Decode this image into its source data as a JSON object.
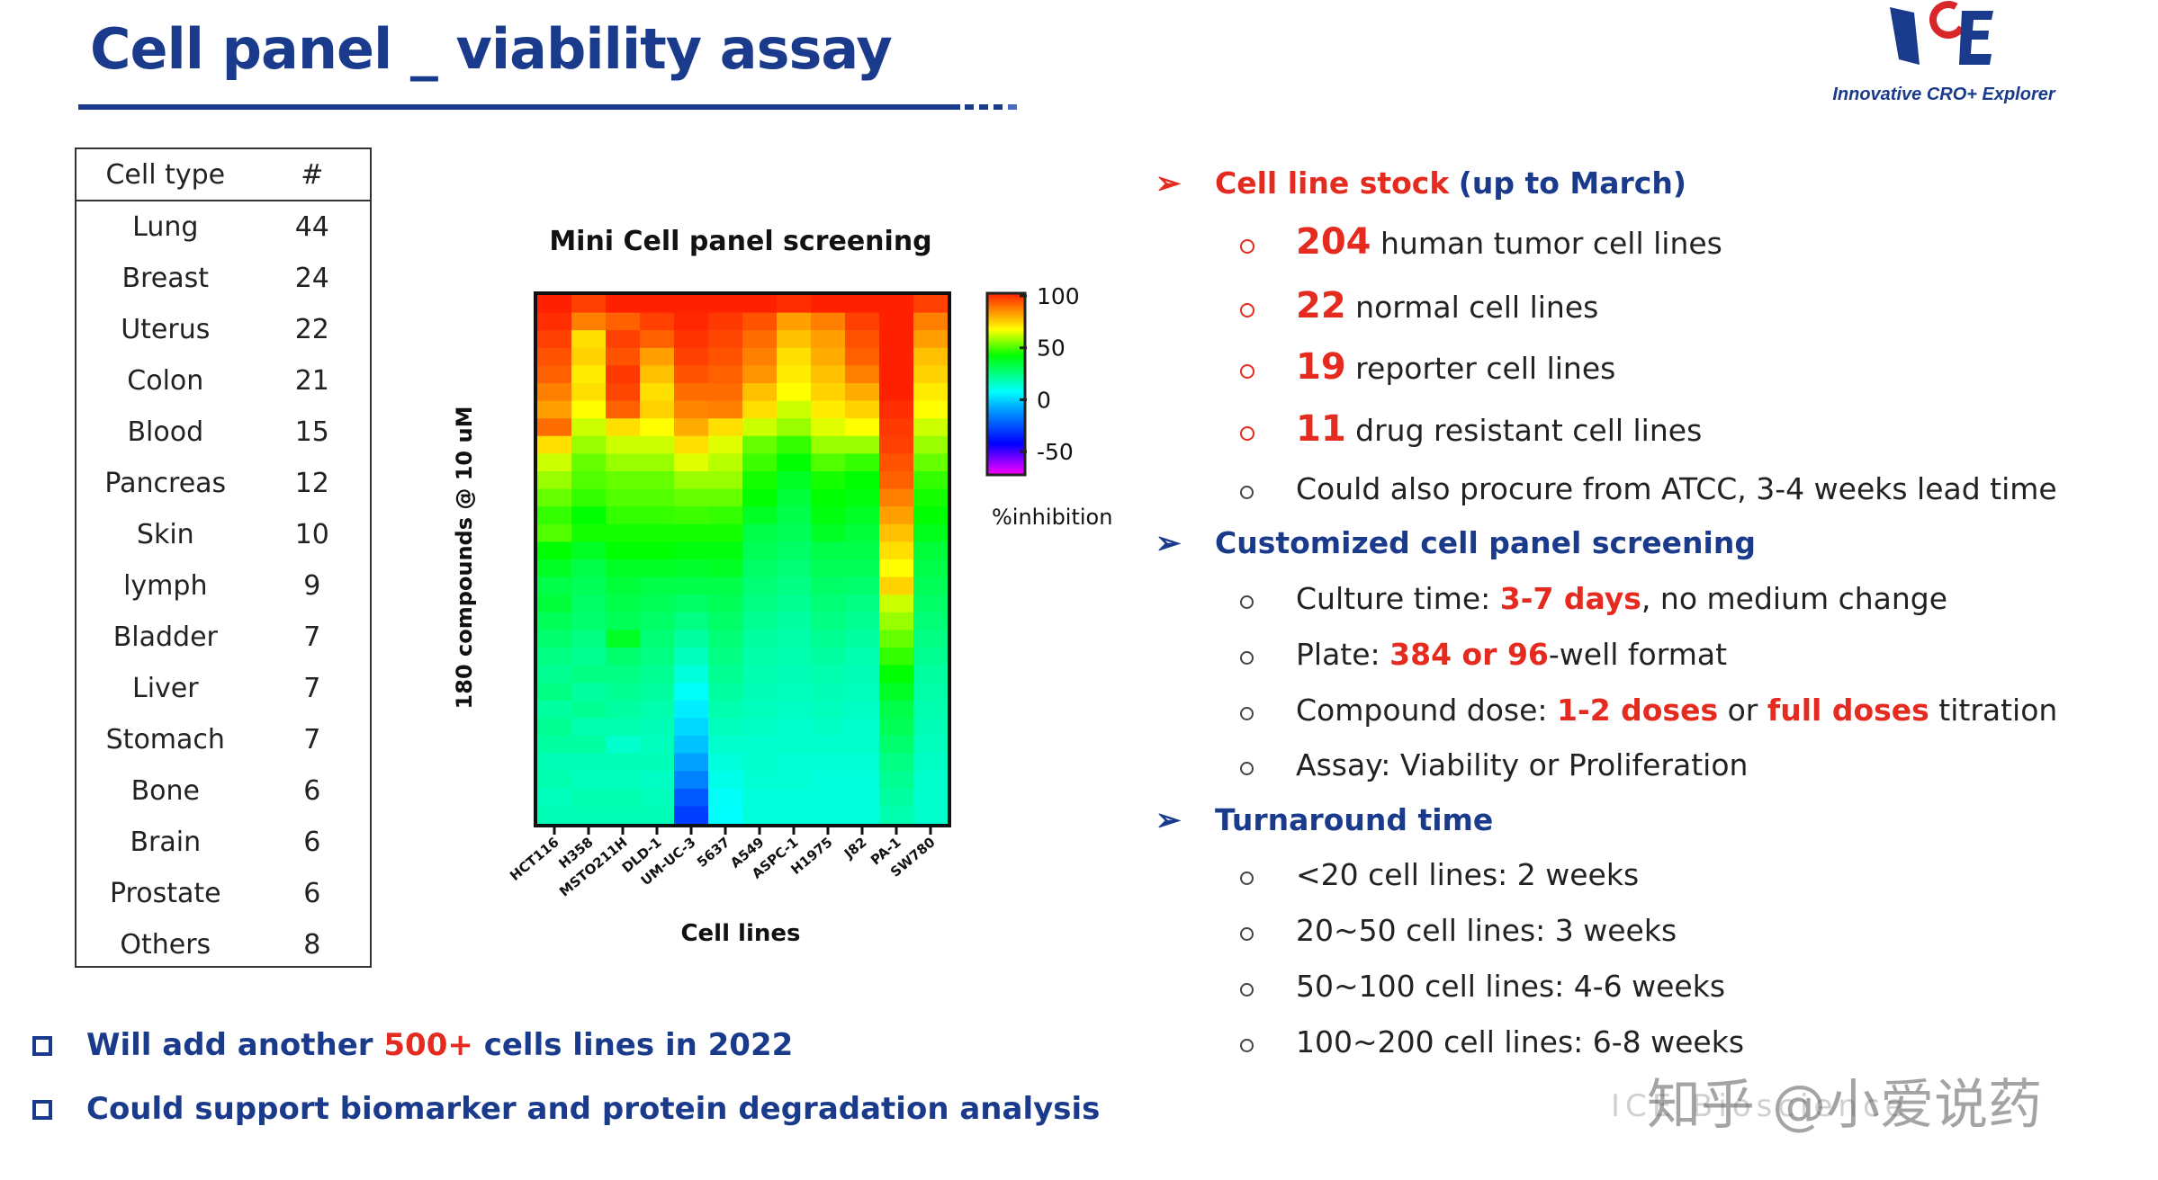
{
  "title": "Cell panel _ viability assay",
  "logo": {
    "letters": "ICE",
    "tagline": "Innovative CRO+ Explorer"
  },
  "table": {
    "headers": [
      "Cell type",
      "#"
    ],
    "rows": [
      [
        "Lung",
        "44"
      ],
      [
        "Breast",
        "24"
      ],
      [
        "Uterus",
        "22"
      ],
      [
        "Colon",
        "21"
      ],
      [
        "Blood",
        "15"
      ],
      [
        "Pancreas",
        "12"
      ],
      [
        "Skin",
        "10"
      ],
      [
        "lymph",
        "9"
      ],
      [
        "Bladder",
        "7"
      ],
      [
        "Liver",
        "7"
      ],
      [
        "Stomach",
        "7"
      ],
      [
        "Bone",
        "6"
      ],
      [
        "Brain",
        "6"
      ],
      [
        "Prostate",
        "6"
      ],
      [
        "Others",
        "8"
      ]
    ]
  },
  "chart_data": {
    "type": "heatmap",
    "title": "Mini Cell panel screening",
    "xlabel": "Cell lines",
    "ylabel": "180 compounds @ 10 uM",
    "categories": [
      "HCT116",
      "H358",
      "MSTO211H",
      "DLD-1",
      "UM-UC-3",
      "5637",
      "A549",
      "ASPC-1",
      "H1975",
      "J82",
      "PA-1",
      "SW780"
    ],
    "colorbar": {
      "label": "%inhibition",
      "ticks": [
        100,
        50,
        0,
        -50
      ],
      "range": [
        -75,
        100
      ],
      "stops": [
        [
          -75,
          "#ff00ff"
        ],
        [
          -45,
          "#0000ff"
        ],
        [
          -15,
          "#0090ff"
        ],
        [
          5,
          "#00ffff"
        ],
        [
          40,
          "#00ff00"
        ],
        [
          65,
          "#ffff00"
        ],
        [
          85,
          "#ff8000"
        ],
        [
          100,
          "#ff2000"
        ]
      ]
    },
    "values_by_column": [
      [
        100,
        98,
        95,
        92,
        90,
        85,
        80,
        88,
        70,
        60,
        55,
        50,
        45,
        48,
        40,
        35,
        30,
        32,
        28,
        25,
        22,
        20,
        22,
        18,
        20,
        18,
        15,
        16,
        14,
        15
      ],
      [
        95,
        85,
        70,
        72,
        68,
        70,
        65,
        60,
        55,
        50,
        48,
        45,
        40,
        42,
        35,
        30,
        28,
        26,
        25,
        22,
        20,
        22,
        18,
        20,
        16,
        18,
        15,
        14,
        16,
        15
      ],
      [
        100,
        90,
        95,
        92,
        96,
        94,
        90,
        70,
        60,
        55,
        50,
        48,
        45,
        42,
        40,
        35,
        32,
        30,
        28,
        35,
        25,
        22,
        20,
        18,
        16,
        12,
        15,
        14,
        16,
        15
      ],
      [
        100,
        95,
        90,
        80,
        75,
        70,
        72,
        65,
        60,
        55,
        50,
        48,
        45,
        42,
        40,
        35,
        30,
        28,
        26,
        24,
        22,
        20,
        18,
        16,
        15,
        14,
        15,
        13,
        14,
        15
      ],
      [
        100,
        99,
        97,
        95,
        92,
        88,
        84,
        78,
        70,
        62,
        55,
        50,
        46,
        42,
        38,
        34,
        30,
        26,
        22,
        18,
        14,
        10,
        6,
        2,
        -2,
        -6,
        -12,
        -18,
        -26,
        -32
      ],
      [
        100,
        96,
        94,
        92,
        90,
        88,
        85,
        70,
        62,
        58,
        55,
        50,
        45,
        42,
        38,
        35,
        30,
        28,
        26,
        24,
        22,
        20,
        18,
        16,
        14,
        12,
        10,
        8,
        6,
        5
      ],
      [
        100,
        92,
        88,
        85,
        82,
        75,
        70,
        60,
        50,
        46,
        42,
        40,
        35,
        30,
        28,
        26,
        24,
        22,
        20,
        18,
        17,
        16,
        15,
        14,
        13,
        12,
        12,
        11,
        10,
        10
      ],
      [
        98,
        80,
        75,
        70,
        68,
        65,
        60,
        55,
        45,
        40,
        35,
        32,
        30,
        28,
        26,
        24,
        22,
        20,
        18,
        17,
        16,
        15,
        14,
        13,
        12,
        12,
        11,
        11,
        10,
        10
      ],
      [
        100,
        85,
        80,
        78,
        75,
        72,
        68,
        62,
        55,
        48,
        42,
        40,
        38,
        35,
        30,
        28,
        26,
        24,
        22,
        20,
        18,
        16,
        15,
        14,
        13,
        12,
        11,
        10,
        10,
        10
      ],
      [
        100,
        95,
        92,
        90,
        85,
        78,
        72,
        65,
        55,
        45,
        40,
        38,
        35,
        32,
        30,
        28,
        25,
        22,
        20,
        18,
        16,
        15,
        14,
        13,
        12,
        12,
        11,
        10,
        10,
        10
      ],
      [
        100,
        100,
        100,
        100,
        100,
        100,
        98,
        96,
        95,
        92,
        90,
        85,
        80,
        75,
        70,
        65,
        72,
        60,
        55,
        50,
        45,
        40,
        35,
        30,
        28,
        25,
        22,
        20,
        18,
        16
      ],
      [
        95,
        85,
        80,
        75,
        72,
        68,
        65,
        60,
        55,
        50,
        45,
        42,
        40,
        36,
        32,
        30,
        28,
        26,
        24,
        22,
        20,
        18,
        17,
        16,
        15,
        14,
        13,
        12,
        12,
        12
      ]
    ]
  },
  "right": {
    "s1": {
      "h": "Cell line stock",
      "h2": "(up to March)",
      "items": [
        {
          "num": "204",
          "text": "human tumor cell lines"
        },
        {
          "num": "22",
          "text": "normal cell lines"
        },
        {
          "num": "19",
          "text": "reporter cell lines"
        },
        {
          "num": "11",
          "text": "drug resistant cell lines"
        }
      ],
      "extra": "Could also procure from ATCC, 3-4 weeks lead time"
    },
    "s2": {
      "h": "Customized cell panel screening",
      "culture": {
        "a": "Culture time: ",
        "b": "3-7 days",
        "c": ", no medium change"
      },
      "plate": {
        "a": "Plate: ",
        "b": "384 or 96",
        "c": "-well format"
      },
      "dose": {
        "a": "Compound dose: ",
        "b": "1-2 doses",
        "c": " or ",
        "d": "full doses",
        "e": " titration"
      },
      "assay": "Assay: Viability or Proliferation"
    },
    "s3": {
      "h": "Turnaround time",
      "items": [
        "<20 cell lines: 2 weeks",
        "20~50 cell lines: 3 weeks",
        "50~100 cell lines: 4-6 weeks",
        "100~200 cell lines: 6-8 weeks"
      ]
    }
  },
  "bottom": {
    "b1": {
      "a": "Will add another ",
      "b": "500+",
      "c": " cells lines in 2022"
    },
    "b2": "Could support biomarker and protein degradation analysis"
  },
  "watermark": {
    "main": "知乎 @小爱说药",
    "sub": "ICE Bioscience"
  },
  "colors": {
    "brand": "#1a3a8c",
    "accent": "#e52a1f"
  }
}
